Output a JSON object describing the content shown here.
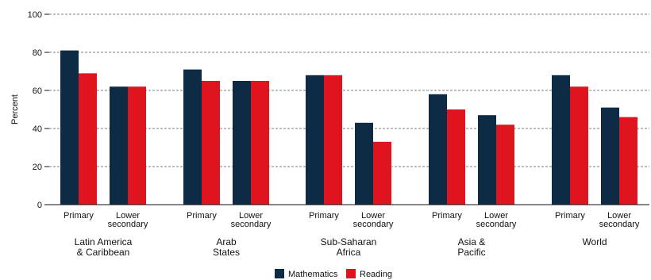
{
  "chart_data": {
    "type": "bar",
    "ylabel": "Percent",
    "ylim": [
      0,
      100
    ],
    "yticks": [
      0,
      20,
      40,
      60,
      80,
      100
    ],
    "grid": true,
    "legend_position": "bottom-center",
    "groups": [
      {
        "label_lines": [
          "Latin America",
          "& Caribbean"
        ],
        "categories": [
          [
            "Primary"
          ],
          [
            "Lower",
            "secondary"
          ]
        ]
      },
      {
        "label_lines": [
          "Arab",
          "States"
        ],
        "categories": [
          [
            "Primary"
          ],
          [
            "Lower",
            "secondary"
          ]
        ]
      },
      {
        "label_lines": [
          "Sub-Saharan",
          "Africa"
        ],
        "categories": [
          [
            "Primary"
          ],
          [
            "Lower",
            "secondary"
          ]
        ]
      },
      {
        "label_lines": [
          "Asia &",
          "Pacific"
        ],
        "categories": [
          [
            "Primary"
          ],
          [
            "Lower",
            "secondary"
          ]
        ]
      },
      {
        "label_lines": [
          "World"
        ],
        "categories": [
          [
            "Primary"
          ],
          [
            "Lower",
            "secondary"
          ]
        ]
      }
    ],
    "series": [
      {
        "name": "Mathematics",
        "color": "#0d2b45",
        "values": [
          81,
          62,
          71,
          65,
          68,
          43,
          58,
          47,
          68,
          51
        ]
      },
      {
        "name": "Reading",
        "color": "#e0141e",
        "values": [
          69,
          62,
          65,
          65,
          68,
          33,
          50,
          42,
          62,
          46
        ]
      }
    ]
  }
}
